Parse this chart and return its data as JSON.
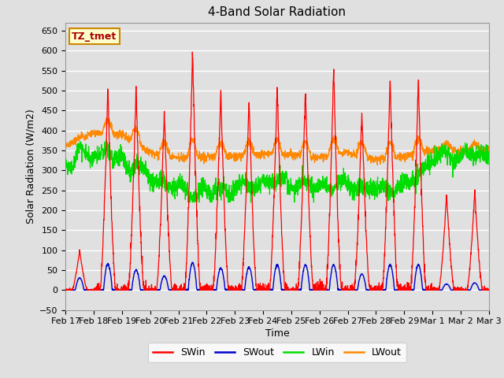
{
  "title": "4-Band Solar Radiation",
  "xlabel": "Time",
  "ylabel": "Solar Radiation (W/m2)",
  "ylim": [
    -50,
    670
  ],
  "yticks": [
    -50,
    0,
    50,
    100,
    150,
    200,
    250,
    300,
    350,
    400,
    450,
    500,
    550,
    600,
    650
  ],
  "annotation_text": "TZ_tmet",
  "colors": {
    "SWin": "#FF0000",
    "SWout": "#0000CC",
    "LWin": "#00DD00",
    "LWout": "#FF8800"
  },
  "background_color": "#E0E0E0",
  "n_days": 15,
  "SWin_peaks": [
    100,
    510,
    510,
    450,
    605,
    505,
    485,
    515,
    510,
    560,
    450,
    535,
    530,
    240,
    250
  ],
  "SWout_peaks": [
    30,
    65,
    50,
    35,
    68,
    55,
    57,
    63,
    63,
    63,
    40,
    63,
    63,
    15,
    18
  ],
  "LWin_base": [
    315,
    340,
    320,
    285,
    260,
    245,
    248,
    265,
    270,
    268,
    262,
    252,
    250,
    335,
    340
  ],
  "LWout_base": [
    360,
    395,
    390,
    345,
    330,
    335,
    335,
    340,
    340,
    332,
    345,
    328,
    335,
    350,
    350
  ],
  "tick_labels": [
    "Feb 17",
    "Feb 18",
    "Feb 19",
    "Feb 20",
    "Feb 21",
    "Feb 22",
    "Feb 23",
    "Feb 24",
    "Feb 25",
    "Feb 26",
    "Feb 27",
    "Feb 28",
    "Feb 29",
    "Mar 1",
    "Mar 2",
    "Mar 3"
  ]
}
